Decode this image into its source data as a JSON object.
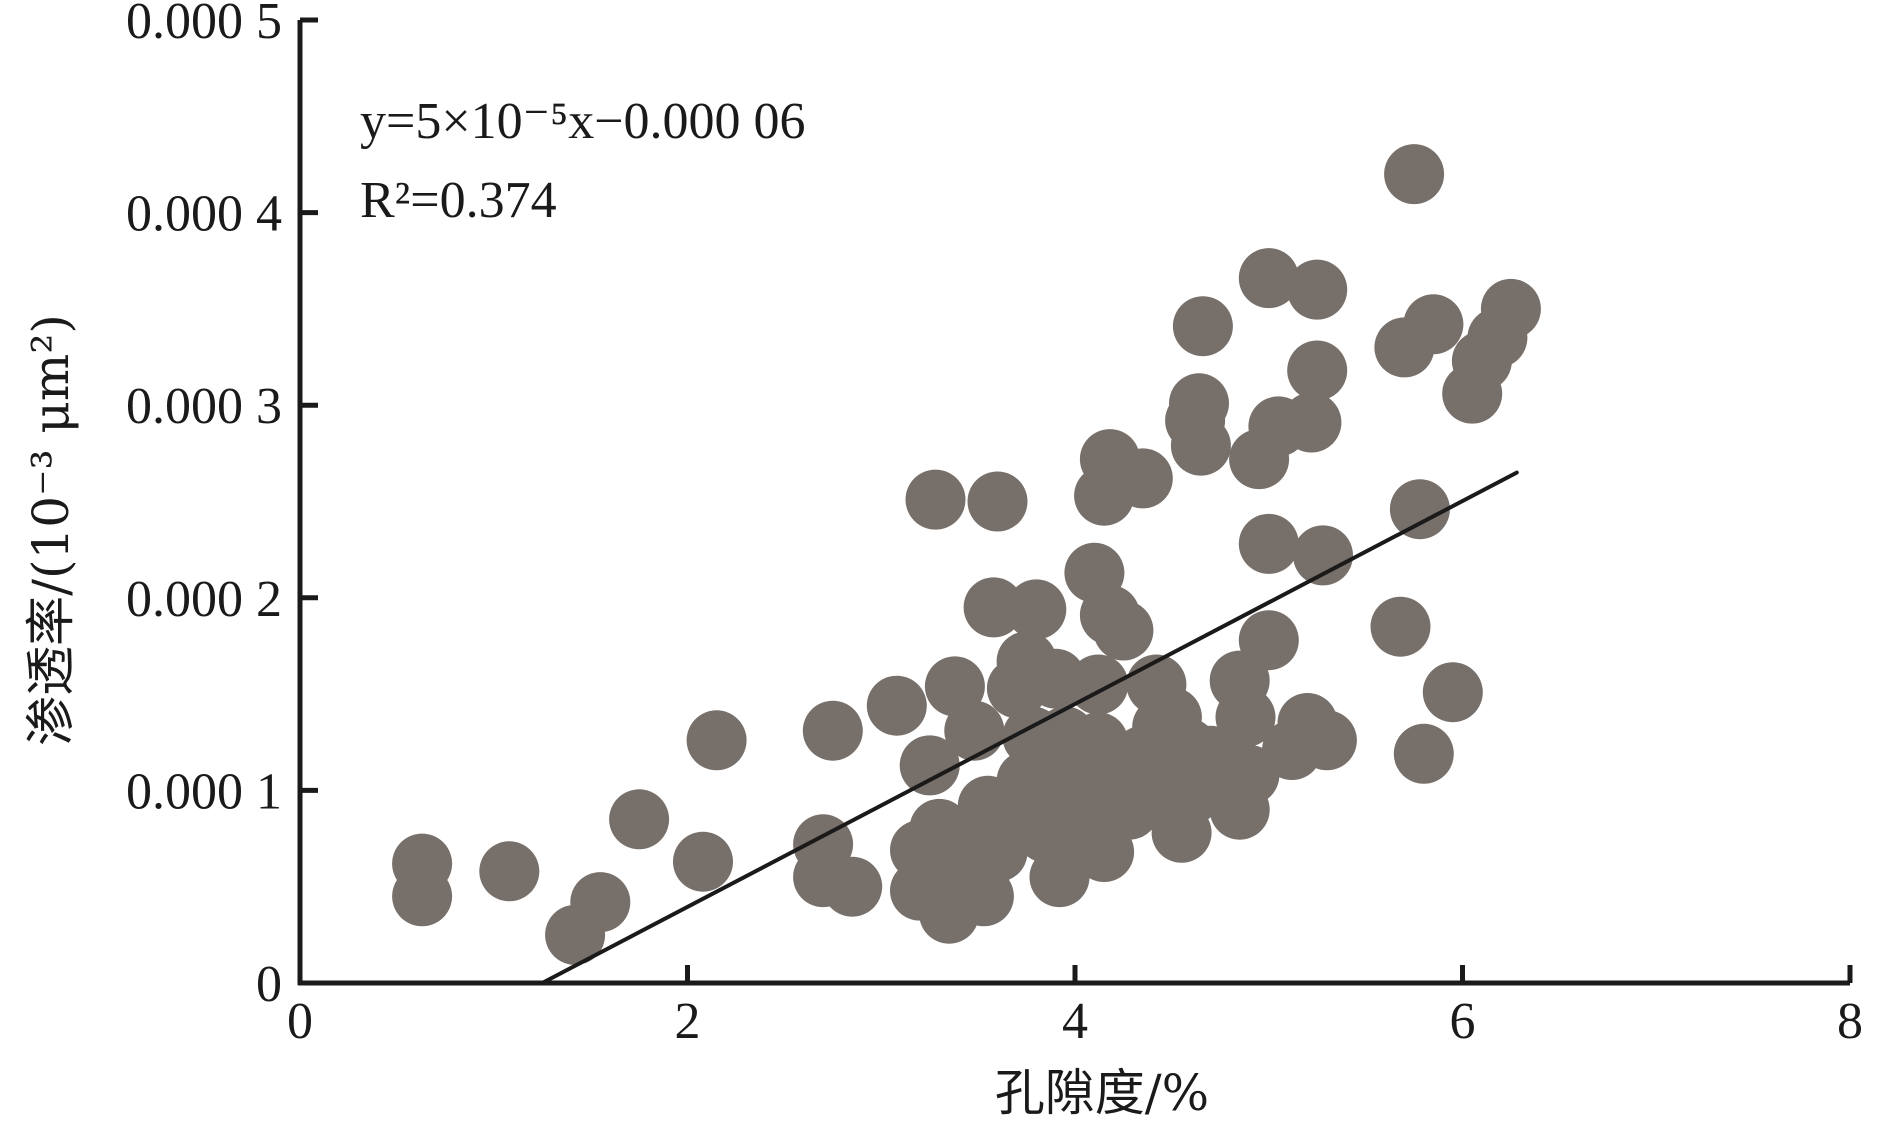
{
  "chart_data": {
    "type": "scatter",
    "xlabel": "孔隙度/%",
    "ylabel": "渗透率/(10⁻³ μm²)",
    "xlim": [
      0,
      8
    ],
    "ylim": [
      0,
      0.0005
    ],
    "x_ticks": [
      0,
      2,
      4,
      6,
      8
    ],
    "x_tick_labels": [
      "0",
      "2",
      "4",
      "6",
      "8"
    ],
    "y_ticks": [
      0,
      0.0001,
      0.0002,
      0.0003,
      0.0004,
      0.0005
    ],
    "y_tick_labels": [
      "0",
      "0.000 1",
      "0.000 2",
      "0.000 3",
      "0.000 4",
      "0.000 5"
    ],
    "grid": false,
    "marker_color": "#776f6a",
    "line_color": "#1a1a1a",
    "annotations": {
      "equation": "y=5×10⁻⁵x−0.000 06",
      "r_squared": "R²=0.374"
    },
    "fit_line": {
      "x": [
        1.25,
        6.28
      ],
      "y": [
        0.0,
        0.000265
      ]
    },
    "points": [
      {
        "x": 0.63,
        "y": 6.2e-05
      },
      {
        "x": 0.63,
        "y": 4.5e-05
      },
      {
        "x": 1.08,
        "y": 5.8e-05
      },
      {
        "x": 1.42,
        "y": 2.5e-05
      },
      {
        "x": 1.55,
        "y": 4.2e-05
      },
      {
        "x": 1.75,
        "y": 8.5e-05
      },
      {
        "x": 2.08,
        "y": 6.3e-05
      },
      {
        "x": 2.15,
        "y": 0.000126
      },
      {
        "x": 2.7,
        "y": 7.2e-05
      },
      {
        "x": 2.7,
        "y": 5.5e-05
      },
      {
        "x": 2.75,
        "y": 0.000131
      },
      {
        "x": 2.85,
        "y": 5e-05
      },
      {
        "x": 3.08,
        "y": 0.000144
      },
      {
        "x": 3.2,
        "y": 6.9e-05
      },
      {
        "x": 3.2,
        "y": 4.8e-05
      },
      {
        "x": 3.25,
        "y": 0.000113
      },
      {
        "x": 3.28,
        "y": 0.000251
      },
      {
        "x": 3.3,
        "y": 8e-05
      },
      {
        "x": 3.3,
        "y": 6e-05
      },
      {
        "x": 3.35,
        "y": 4.2e-05
      },
      {
        "x": 3.35,
        "y": 3.6e-05
      },
      {
        "x": 3.38,
        "y": 0.000154
      },
      {
        "x": 3.45,
        "y": 7.5e-05
      },
      {
        "x": 3.48,
        "y": 0.000131
      },
      {
        "x": 3.5,
        "y": 5.8e-05
      },
      {
        "x": 3.53,
        "y": 4.5e-05
      },
      {
        "x": 3.55,
        "y": 9.2e-05
      },
      {
        "x": 3.58,
        "y": 0.000195
      },
      {
        "x": 3.6,
        "y": 0.00025
      },
      {
        "x": 3.6,
        "y": 6.8e-05
      },
      {
        "x": 3.65,
        "y": 8e-05
      },
      {
        "x": 3.7,
        "y": 0.000153
      },
      {
        "x": 3.75,
        "y": 0.000167
      },
      {
        "x": 3.75,
        "y": 0.000105
      },
      {
        "x": 3.78,
        "y": 0.000128
      },
      {
        "x": 3.8,
        "y": 0.000194
      },
      {
        "x": 3.8,
        "y": 9e-05
      },
      {
        "x": 3.85,
        "y": 7.8e-05
      },
      {
        "x": 3.88,
        "y": 0.000115
      },
      {
        "x": 3.9,
        "y": 0.000158
      },
      {
        "x": 3.92,
        "y": 5.5e-05
      },
      {
        "x": 3.95,
        "y": 0.000128
      },
      {
        "x": 3.95,
        "y": 0.0001
      },
      {
        "x": 4.0,
        "y": 8.5e-05
      },
      {
        "x": 4.0,
        "y": 7.2e-05
      },
      {
        "x": 4.05,
        "y": 0.000115
      },
      {
        "x": 4.08,
        "y": 9.5e-05
      },
      {
        "x": 4.1,
        "y": 0.000213
      },
      {
        "x": 4.12,
        "y": 0.000155
      },
      {
        "x": 4.12,
        "y": 0.000125
      },
      {
        "x": 4.15,
        "y": 6.8e-05
      },
      {
        "x": 4.15,
        "y": 0.000253
      },
      {
        "x": 4.18,
        "y": 0.000272
      },
      {
        "x": 4.18,
        "y": 0.000191
      },
      {
        "x": 4.2,
        "y": 0.000105
      },
      {
        "x": 4.25,
        "y": 0.000183
      },
      {
        "x": 4.25,
        "y": 0.000112
      },
      {
        "x": 4.28,
        "y": 9e-05
      },
      {
        "x": 4.35,
        "y": 0.000262
      },
      {
        "x": 4.35,
        "y": 0.000118
      },
      {
        "x": 4.4,
        "y": 9.5e-05
      },
      {
        "x": 4.42,
        "y": 0.000155
      },
      {
        "x": 4.45,
        "y": 0.000133
      },
      {
        "x": 4.48,
        "y": 0.000112
      },
      {
        "x": 4.5,
        "y": 0.000138
      },
      {
        "x": 4.55,
        "y": 7.8e-05
      },
      {
        "x": 4.58,
        "y": 0.000122
      },
      {
        "x": 4.6,
        "y": 9.8e-05
      },
      {
        "x": 4.62,
        "y": 0.000292
      },
      {
        "x": 4.64,
        "y": 0.000301
      },
      {
        "x": 4.65,
        "y": 0.000279
      },
      {
        "x": 4.66,
        "y": 0.000341
      },
      {
        "x": 4.7,
        "y": 0.000118
      },
      {
        "x": 4.8,
        "y": 0.000102
      },
      {
        "x": 4.85,
        "y": 0.000157
      },
      {
        "x": 4.85,
        "y": 9e-05
      },
      {
        "x": 4.88,
        "y": 0.000138
      },
      {
        "x": 4.9,
        "y": 0.000108
      },
      {
        "x": 4.95,
        "y": 0.000272
      },
      {
        "x": 5.0,
        "y": 0.000366
      },
      {
        "x": 5.0,
        "y": 0.000228
      },
      {
        "x": 5.0,
        "y": 0.000178
      },
      {
        "x": 5.05,
        "y": 0.000289
      },
      {
        "x": 5.12,
        "y": 0.000121
      },
      {
        "x": 5.2,
        "y": 0.000135
      },
      {
        "x": 5.22,
        "y": 0.000291
      },
      {
        "x": 5.25,
        "y": 0.00036
      },
      {
        "x": 5.25,
        "y": 0.000318
      },
      {
        "x": 5.28,
        "y": 0.000222
      },
      {
        "x": 5.3,
        "y": 0.000126
      },
      {
        "x": 5.68,
        "y": 0.000185
      },
      {
        "x": 5.7,
        "y": 0.00033
      },
      {
        "x": 5.75,
        "y": 0.00042
      },
      {
        "x": 5.78,
        "y": 0.000246
      },
      {
        "x": 5.8,
        "y": 0.000119
      },
      {
        "x": 5.85,
        "y": 0.000342
      },
      {
        "x": 5.95,
        "y": 0.000151
      },
      {
        "x": 6.05,
        "y": 0.000306
      },
      {
        "x": 6.1,
        "y": 0.000323
      },
      {
        "x": 6.18,
        "y": 0.000335
      },
      {
        "x": 6.25,
        "y": 0.00035
      }
    ]
  }
}
